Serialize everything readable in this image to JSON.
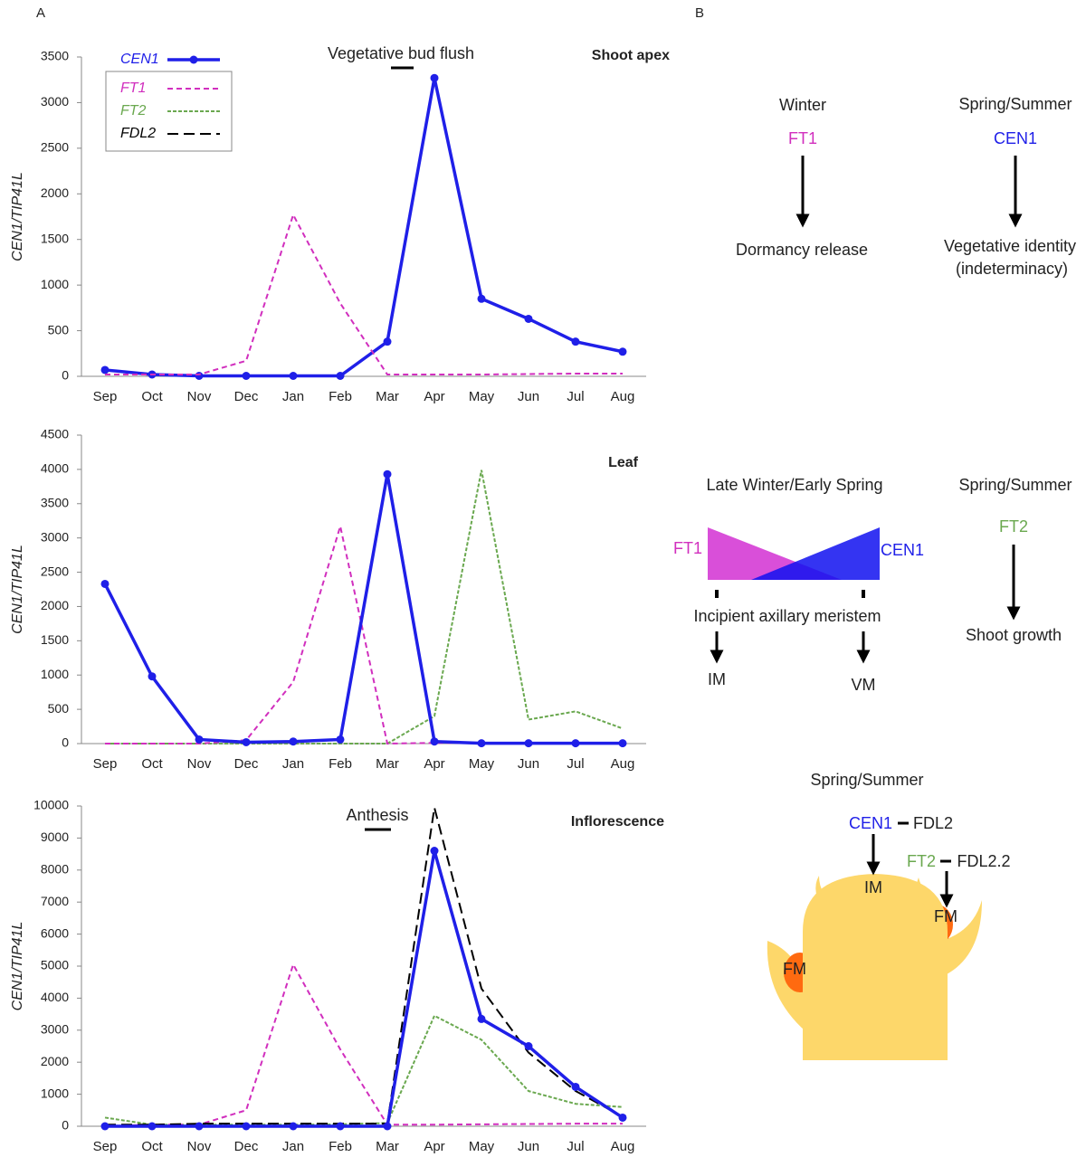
{
  "panel_labels": [
    "A",
    "B"
  ],
  "chart_data": [
    {
      "type": "line",
      "title": "Shoot apex",
      "ylabel": "CEN1/TIP41L",
      "annotation": "Vegetative bud flush",
      "legend": true,
      "categories": [
        "Sep",
        "Oct",
        "Nov",
        "Dec",
        "Jan",
        "Feb",
        "Mar",
        "Apr",
        "May",
        "Jun",
        "Jul",
        "Aug"
      ],
      "ylim": [
        0,
        3500
      ],
      "yticks": [
        0,
        500,
        1000,
        1500,
        2000,
        2500,
        3000,
        3500
      ],
      "series": [
        {
          "name": "CEN1",
          "color": "#1f1fe8",
          "style": "solid",
          "marker": true,
          "values": [
            70,
            20,
            5,
            5,
            5,
            5,
            380,
            3270,
            850,
            630,
            380,
            270
          ]
        },
        {
          "name": "FT1",
          "color": "#d12fbe",
          "style": "dashed",
          "marker": false,
          "values": [
            20,
            20,
            20,
            170,
            1770,
            800,
            20,
            20,
            20,
            25,
            30,
            30
          ]
        },
        {
          "name": "FT2",
          "color": "#6aa84f",
          "style": "short-dashed",
          "marker": false,
          "values": [
            null,
            null,
            null,
            null,
            null,
            null,
            null,
            null,
            null,
            null,
            null,
            null
          ]
        },
        {
          "name": "FDL2",
          "color": "#000000",
          "style": "long-dashed",
          "marker": false,
          "values": [
            null,
            null,
            null,
            null,
            null,
            null,
            null,
            null,
            null,
            null,
            null,
            null
          ]
        }
      ]
    },
    {
      "type": "line",
      "title": "Leaf",
      "ylabel": "CEN1/TIP41L",
      "legend": false,
      "categories": [
        "Sep",
        "Oct",
        "Nov",
        "Dec",
        "Jan",
        "Feb",
        "Mar",
        "Apr",
        "May",
        "Jun",
        "Jul",
        "Aug"
      ],
      "ylim": [
        0,
        4500
      ],
      "yticks": [
        0,
        500,
        1000,
        1500,
        2000,
        2500,
        3000,
        3500,
        4000,
        4500
      ],
      "series": [
        {
          "color": "#6aa84f",
          "style": "short-dashed",
          "marker": false,
          "values": [
            0,
            0,
            0,
            0,
            0,
            0,
            0,
            400,
            3990,
            350,
            470,
            220
          ]
        },
        {
          "color": "#d12fbe",
          "style": "dashed",
          "marker": false,
          "values": [
            0,
            0,
            0,
            50,
            900,
            3170,
            0,
            10,
            10,
            10,
            10,
            10
          ]
        },
        {
          "color": "#1f1fe8",
          "style": "solid",
          "marker": true,
          "values": [
            2330,
            980,
            60,
            20,
            30,
            60,
            3930,
            30,
            5,
            5,
            5,
            5
          ]
        }
      ]
    },
    {
      "type": "line",
      "title": "Inflorescence",
      "ylabel": "CEN1/TIP41L",
      "annotation": "Anthesis",
      "legend": false,
      "categories": [
        "Sep",
        "Oct",
        "Nov",
        "Dec",
        "Jan",
        "Feb",
        "Mar",
        "Apr",
        "May",
        "Jun",
        "Jul",
        "Aug"
      ],
      "ylim": [
        0,
        10000
      ],
      "yticks": [
        0,
        1000,
        2000,
        3000,
        4000,
        5000,
        6000,
        7000,
        8000,
        9000,
        10000
      ],
      "series": [
        {
          "color": "#6aa84f",
          "style": "short-dashed",
          "marker": false,
          "values": [
            270,
            50,
            50,
            50,
            50,
            60,
            100,
            3450,
            2700,
            1100,
            700,
            600
          ]
        },
        {
          "color": "#d12fbe",
          "style": "dashed",
          "marker": false,
          "values": [
            0,
            50,
            50,
            500,
            5050,
            2400,
            50,
            50,
            60,
            70,
            80,
            80
          ]
        },
        {
          "color": "#000000",
          "style": "long-dashed",
          "marker": false,
          "values": [
            50,
            50,
            80,
            80,
            80,
            80,
            80,
            9950,
            4300,
            2300,
            1100,
            300
          ]
        },
        {
          "color": "#1f1fe8",
          "style": "solid",
          "marker": true,
          "values": [
            0,
            0,
            0,
            0,
            0,
            0,
            0,
            8600,
            3350,
            2500,
            1230,
            270
          ]
        }
      ]
    }
  ],
  "panel_b": {
    "row1": {
      "left": {
        "season": "Winter",
        "gene": "FT1",
        "outcome": "Dormancy release"
      },
      "right": {
        "season": "Spring/Summer",
        "gene": "CEN1",
        "outcome_lines": [
          "Vegetative identity",
          "(indeterminacy)"
        ]
      }
    },
    "row2": {
      "left": {
        "season": "Late Winter/Early Spring",
        "gene_left": "FT1",
        "gene_right": "CEN1",
        "meristem": "Incipient axillary meristem",
        "fate_left": "IM",
        "fate_right": "VM"
      },
      "right": {
        "season": "Spring/Summer",
        "gene": "FT2",
        "outcome": "Shoot growth"
      }
    },
    "row3": {
      "season": "Spring/Summer",
      "gene1": "CEN1",
      "partner1": "FDL2",
      "gene2": "FT2",
      "partner2": "FDL2.2",
      "labels": [
        "IM",
        "FM",
        "FM"
      ]
    }
  }
}
